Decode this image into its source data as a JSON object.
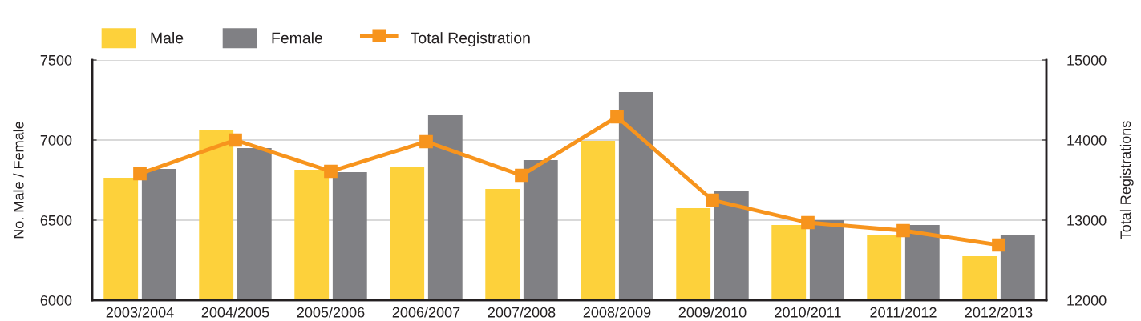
{
  "chart_data": {
    "type": "bar",
    "categories": [
      "2003/2004",
      "2004/2005",
      "2005/2006",
      "2006/2007",
      "2007/2008",
      "2008/2009",
      "2009/2010",
      "2010/2011",
      "2011/2012",
      "2012/2013"
    ],
    "series": [
      {
        "name": "Male",
        "color": "#fdd13b",
        "values": [
          6765,
          7060,
          6815,
          6835,
          6695,
          6995,
          6575,
          6470,
          6405,
          6275
        ]
      },
      {
        "name": "Female",
        "color": "#808084",
        "values": [
          6820,
          6950,
          6800,
          7155,
          6875,
          7300,
          6680,
          6500,
          6470,
          6405
        ]
      },
      {
        "name": "Total Registration",
        "type": "line",
        "axis": "y2",
        "color": "#f7941d",
        "marker": "square",
        "line_style": "solid",
        "values": [
          13580,
          14000,
          13610,
          13980,
          13560,
          14290,
          13250,
          12970,
          12870,
          12690
        ]
      }
    ],
    "ylabel": "No. Male / Female",
    "y2label": "Total Registrations",
    "ylim": [
      6000,
      7500
    ],
    "yticks": [
      6000,
      6500,
      7000,
      7500
    ],
    "y2lim": [
      12000,
      15000
    ],
    "y2ticks": [
      12000,
      13000,
      14000,
      15000
    ],
    "grid": "y",
    "legend": "top"
  }
}
